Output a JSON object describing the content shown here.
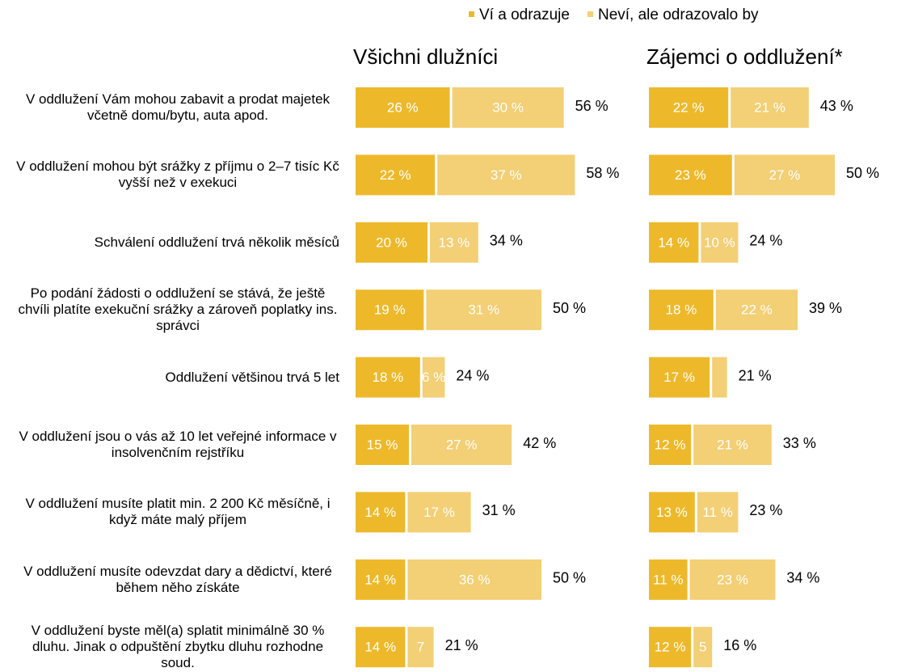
{
  "chart_data": {
    "type": "bar",
    "orientation": "horizontal",
    "stacked": true,
    "categories": [
      "V oddlužení Vám mohou zabavit a prodat majetek včetně domu/bytu, auta apod.",
      "V oddlužení mohou být srážky z příjmu o 2–7 tisíc Kč vyšší než v exekuci",
      "Schválení oddlužení trvá několik měsíců",
      "Po podání žádosti o oddlužení se stává, že ještě chvíli platíte exekuční srážky a zároveň poplatky ins. správci",
      "Oddlužení většinou trvá 5 let",
      "V oddlužení jsou o vás až 10 let veřejné informace v insolvenčním rejstříku",
      "V oddlužení musíte platit min. 2 200 Kč měsíčně, i když máte malý příjem",
      "V oddlužení musíte odevzdat dary a dědictví, které během něho získáte",
      "V oddlužení byste měl(a) splatit minimálně 30 % dluhu. Jinak o odpuštění zbytku dluhu rozhodne soud."
    ],
    "series": [
      {
        "name": "Ví a odrazuje",
        "color": "#edb92b"
      },
      {
        "name": "Neví, ale odrazovalo by",
        "color": "#f3cf75"
      }
    ],
    "panels": [
      {
        "title": "Všichni dlužníci",
        "series": [
          {
            "values": [
              26,
              22,
              20,
              19,
              18,
              15,
              14,
              14,
              14
            ],
            "value_labels": [
              "26 %",
              "22 %",
              "20 %",
              "19 %",
              "18 %",
              "15 %",
              "14 %",
              "14 %",
              "14 %"
            ]
          },
          {
            "values": [
              30,
              37,
              13,
              31,
              6,
              27,
              17,
              36,
              7
            ],
            "value_labels": [
              "30 %",
              "37 %",
              "13 %",
              "31 %",
              "6 %",
              "27 %",
              "17 %",
              "36 %",
              "7"
            ]
          }
        ],
        "totals": [
          56,
          58,
          34,
          50,
          24,
          42,
          31,
          50,
          21
        ],
        "total_labels": [
          "56 %",
          "58 %",
          "34 %",
          "50 %",
          "24 %",
          "42 %",
          "31 %",
          "50 %",
          "21 %"
        ]
      },
      {
        "title": "Zájemci o oddlužení*",
        "series": [
          {
            "values": [
              22,
              23,
              14,
              18,
              17,
              12,
              13,
              11,
              12
            ],
            "value_labels": [
              "22 %",
              "23 %",
              "14 %",
              "18 %",
              "17 %",
              "12 %",
              "13 %",
              "11 %",
              "12 %"
            ]
          },
          {
            "values": [
              21,
              27,
              10,
              22,
              4,
              21,
              11,
              23,
              5
            ],
            "value_labels": [
              "21 %",
              "27 %",
              "10 %",
              "22 %",
              null,
              "21 %",
              "11 %",
              "23 %",
              "5"
            ]
          }
        ],
        "totals": [
          43,
          50,
          24,
          39,
          21,
          33,
          23,
          34,
          16
        ],
        "total_labels": [
          "43 %",
          "50 %",
          "24 %",
          "39 %",
          "21 %",
          "33 %",
          "23 %",
          "34 %",
          "16 %"
        ]
      }
    ]
  }
}
